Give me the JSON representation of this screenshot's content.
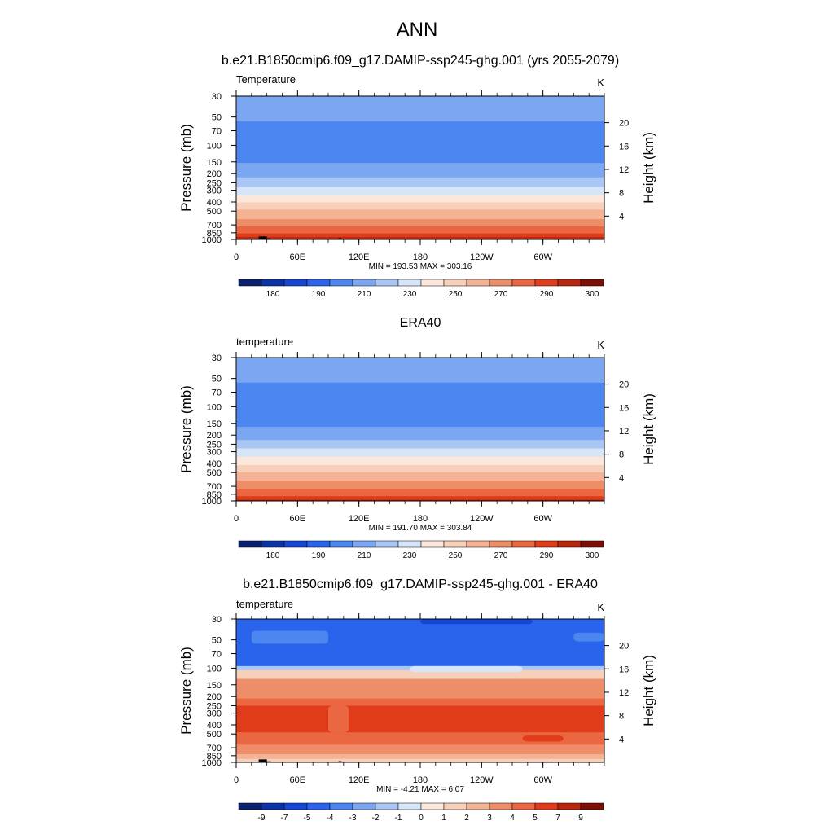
{
  "title": "ANN",
  "chart_data": [
    {
      "type": "heatmap",
      "title": "b.e21.B1850cmip6.f09_g17.DAMIP-ssp245-ghg.001 (yrs 2055-2079)",
      "variable": "Temperature",
      "units": "K",
      "ylabel": "Pressure (mb)",
      "ylabel_right": "Height (km)",
      "x_ticks": [
        "0",
        "60E",
        "120E",
        "180",
        "120W",
        "60W"
      ],
      "x_tick_lon": [
        0,
        60,
        120,
        180,
        240,
        300
      ],
      "xlim": [
        0,
        360
      ],
      "y_ticks": [
        30,
        50,
        70,
        100,
        150,
        200,
        250,
        300,
        400,
        500,
        700,
        850,
        1000
      ],
      "ylim": [
        30,
        1000
      ],
      "y_scale": "log",
      "height_ticks": [
        4,
        8,
        12,
        16,
        20
      ],
      "stats": "MIN = 193.53  MAX = 303.16",
      "colorbar_labels": [
        "180",
        "190",
        "210",
        "230",
        "250",
        "270",
        "290",
        "300"
      ],
      "profile": [
        [
          30,
          218
        ],
        [
          40,
          215
        ],
        [
          55,
          210
        ],
        [
          70,
          206
        ],
        [
          85,
          204
        ],
        [
          100,
          203
        ],
        [
          120,
          205
        ],
        [
          150,
          209
        ],
        [
          175,
          213
        ],
        [
          200,
          217
        ],
        [
          230,
          222
        ],
        [
          260,
          228
        ],
        [
          300,
          234
        ],
        [
          350,
          242
        ],
        [
          400,
          250
        ],
        [
          450,
          256
        ],
        [
          500,
          262
        ],
        [
          600,
          270
        ],
        [
          700,
          278
        ],
        [
          800,
          285
        ],
        [
          850,
          289
        ],
        [
          900,
          292
        ],
        [
          950,
          295
        ],
        [
          1000,
          298
        ]
      ],
      "colors": [
        "#08206e",
        "#0a33a6",
        "#1646d6",
        "#2a63ec",
        "#4c86f0",
        "#7aa6f2",
        "#a9c6f5",
        "#d6e5f8",
        "#fbe7dc",
        "#f8cfb8",
        "#f4b394",
        "#ee8e69",
        "#ea6741",
        "#e03c1a",
        "#b8260e",
        "#7e0d04"
      ],
      "topography": [
        {
          "lon_start": 8,
          "lon_end": 22,
          "top_pressure": 985
        },
        {
          "lon_start": 22,
          "lon_end": 30,
          "top_pressure": 930
        },
        {
          "lon_start": 30,
          "lon_end": 34,
          "top_pressure": 975
        },
        {
          "lon_start": 100,
          "lon_end": 103,
          "top_pressure": 970
        },
        {
          "lon_start": 282,
          "lon_end": 310,
          "top_pressure": 985
        }
      ]
    },
    {
      "type": "heatmap",
      "title": "ERA40",
      "variable": "temperature",
      "units": "K",
      "ylabel": "Pressure (mb)",
      "ylabel_right": "Height (km)",
      "x_ticks": [
        "0",
        "60E",
        "120E",
        "180",
        "120W",
        "60W"
      ],
      "x_tick_lon": [
        0,
        60,
        120,
        180,
        240,
        300
      ],
      "xlim": [
        0,
        360
      ],
      "y_ticks": [
        30,
        50,
        70,
        100,
        150,
        200,
        250,
        300,
        400,
        500,
        700,
        850,
        1000
      ],
      "ylim": [
        30,
        1000
      ],
      "y_scale": "log",
      "height_ticks": [
        4,
        8,
        12,
        16,
        20
      ],
      "stats": "MIN = 191.70  MAX = 303.84",
      "colorbar_labels": [
        "180",
        "190",
        "210",
        "230",
        "250",
        "270",
        "290",
        "300"
      ],
      "profile": [
        [
          30,
          217
        ],
        [
          40,
          214
        ],
        [
          55,
          210
        ],
        [
          70,
          206
        ],
        [
          85,
          203
        ],
        [
          100,
          202
        ],
        [
          120,
          204
        ],
        [
          150,
          208
        ],
        [
          175,
          212
        ],
        [
          200,
          216
        ],
        [
          230,
          221
        ],
        [
          260,
          227
        ],
        [
          300,
          233
        ],
        [
          350,
          241
        ],
        [
          400,
          248
        ],
        [
          450,
          255
        ],
        [
          500,
          261
        ],
        [
          600,
          269
        ],
        [
          700,
          277
        ],
        [
          800,
          284
        ],
        [
          850,
          288
        ],
        [
          900,
          291
        ],
        [
          950,
          294
        ],
        [
          1000,
          297
        ]
      ],
      "colors": [
        "#08206e",
        "#0a33a6",
        "#1646d6",
        "#2a63ec",
        "#4c86f0",
        "#7aa6f2",
        "#a9c6f5",
        "#d6e5f8",
        "#fbe7dc",
        "#f8cfb8",
        "#f4b394",
        "#ee8e69",
        "#ea6741",
        "#e03c1a",
        "#b8260e",
        "#7e0d04"
      ],
      "topography": []
    },
    {
      "type": "heatmap",
      "title": "b.e21.B1850cmip6.f09_g17.DAMIP-ssp245-ghg.001 - ERA40",
      "variable": "temperature",
      "units": "K",
      "ylabel": "Pressure (mb)",
      "ylabel_right": "Height (km)",
      "x_ticks": [
        "0",
        "60E",
        "120E",
        "180",
        "120W",
        "60W"
      ],
      "x_tick_lon": [
        0,
        60,
        120,
        180,
        240,
        300
      ],
      "xlim": [
        0,
        360
      ],
      "y_ticks": [
        30,
        50,
        70,
        100,
        150,
        200,
        250,
        300,
        400,
        500,
        700,
        850,
        1000
      ],
      "ylim": [
        30,
        1000
      ],
      "y_scale": "log",
      "height_ticks": [
        4,
        8,
        12,
        16,
        20
      ],
      "stats": "MIN =  -4.21  MAX =   6.07",
      "colorbar_labels": [
        "-9",
        "-7",
        "-5",
        "-4",
        "-3",
        "-2",
        "-1",
        "0",
        "1",
        "2",
        "3",
        "4",
        "5",
        "7",
        "9"
      ],
      "bands": [
        {
          "p_top": 30,
          "p_bottom": 95,
          "color": "#2a63ec"
        },
        {
          "p_top": 95,
          "p_bottom": 105,
          "color": "#a9c6f5"
        },
        {
          "p_top": 105,
          "p_bottom": 130,
          "color": "#f8cfb8"
        },
        {
          "p_top": 130,
          "p_bottom": 210,
          "color": "#ee8e69"
        },
        {
          "p_top": 210,
          "p_bottom": 250,
          "color": "#ea6741"
        },
        {
          "p_top": 250,
          "p_bottom": 480,
          "color": "#e03c1a"
        },
        {
          "p_top": 480,
          "p_bottom": 650,
          "color": "#ea6741"
        },
        {
          "p_top": 650,
          "p_bottom": 820,
          "color": "#ee8e69"
        },
        {
          "p_top": 820,
          "p_bottom": 920,
          "color": "#f4b394"
        },
        {
          "p_top": 920,
          "p_bottom": 1000,
          "color": "#f8cfb8"
        }
      ],
      "patches": [
        {
          "lon_start": 15,
          "lon_end": 90,
          "p_top": 40,
          "p_bottom": 55,
          "color": "#4c86f0"
        },
        {
          "lon_start": 330,
          "lon_end": 360,
          "p_top": 42,
          "p_bottom": 52,
          "color": "#4c86f0"
        },
        {
          "lon_start": 180,
          "lon_end": 290,
          "p_top": 30,
          "p_bottom": 34,
          "color": "#1646d6"
        },
        {
          "lon_start": 170,
          "lon_end": 280,
          "p_top": 95,
          "p_bottom": 110,
          "color": "#d6e5f8"
        },
        {
          "lon_start": 90,
          "lon_end": 110,
          "p_top": 250,
          "p_bottom": 480,
          "color": "#ea6741"
        },
        {
          "lon_start": 280,
          "lon_end": 320,
          "p_top": 520,
          "p_bottom": 600,
          "color": "#e03c1a"
        }
      ],
      "colors": [
        "#08206e",
        "#0a33a6",
        "#1646d6",
        "#2a63ec",
        "#4c86f0",
        "#7aa6f2",
        "#a9c6f5",
        "#d6e5f8",
        "#fbe7dc",
        "#f8cfb8",
        "#f4b394",
        "#ee8e69",
        "#ea6741",
        "#e03c1a",
        "#b8260e",
        "#7e0d04"
      ],
      "topography": [
        {
          "lon_start": 8,
          "lon_end": 22,
          "top_pressure": 985
        },
        {
          "lon_start": 22,
          "lon_end": 30,
          "top_pressure": 930
        },
        {
          "lon_start": 30,
          "lon_end": 34,
          "top_pressure": 975
        },
        {
          "lon_start": 100,
          "lon_end": 103,
          "top_pressure": 970
        },
        {
          "lon_start": 282,
          "lon_end": 310,
          "top_pressure": 985
        }
      ]
    }
  ]
}
